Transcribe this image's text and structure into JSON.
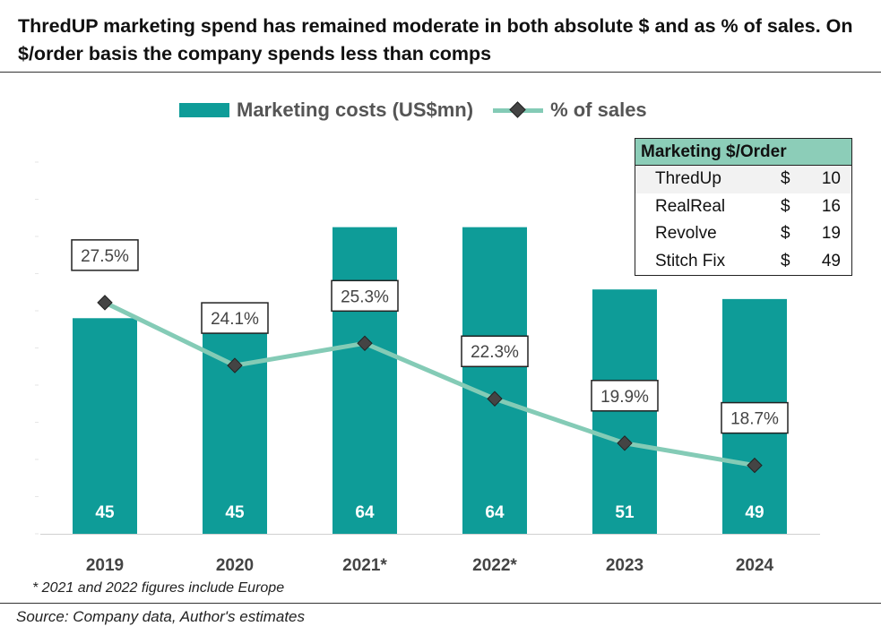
{
  "title": "ThredUP marketing spend has remained moderate in both absolute $ and as %  of sales. On $/order basis the company spends less than comps",
  "footnote": "* 2021 and 2022 figures include Europe",
  "source": "Source: Company data, Author's estimates",
  "colors": {
    "bar": "#0e9c98",
    "line": "#84cbb6",
    "marker": "#444444",
    "table_header": "#8ccdb8"
  },
  "legend": {
    "bar_label": "Marketing costs (US$mn)",
    "line_label": "% of sales"
  },
  "chart_data": {
    "type": "bar",
    "categories": [
      "2019",
      "2020",
      "2021*",
      "2022*",
      "2023",
      "2024"
    ],
    "series": [
      {
        "name": "Marketing costs (US$mn)",
        "type": "bar",
        "axis": "left",
        "values": [
          45,
          45,
          64,
          64,
          51,
          49
        ],
        "labels": [
          "45",
          "45",
          "64",
          "64",
          "51",
          "49"
        ]
      },
      {
        "name": "% of sales",
        "type": "line",
        "axis": "right",
        "values": [
          27.5,
          24.1,
          25.3,
          22.3,
          19.9,
          18.7
        ],
        "labels": [
          "27.5%",
          "24.1%",
          "25.3%",
          "22.3%",
          "19.9%",
          "18.7%"
        ]
      }
    ],
    "bar_axis_range": [
      0,
      83
    ],
    "line_axis_range": [
      15,
      36.5
    ],
    "grid": false,
    "legend_position": "top"
  },
  "table": {
    "header": "Marketing $/Order",
    "rows": [
      {
        "name": "ThredUp",
        "currency": "$",
        "value": "10"
      },
      {
        "name": "RealReal",
        "currency": "$",
        "value": "16"
      },
      {
        "name": "Revolve",
        "currency": "$",
        "value": "19"
      },
      {
        "name": "Stitch Fix",
        "currency": "$",
        "value": "49"
      }
    ]
  }
}
